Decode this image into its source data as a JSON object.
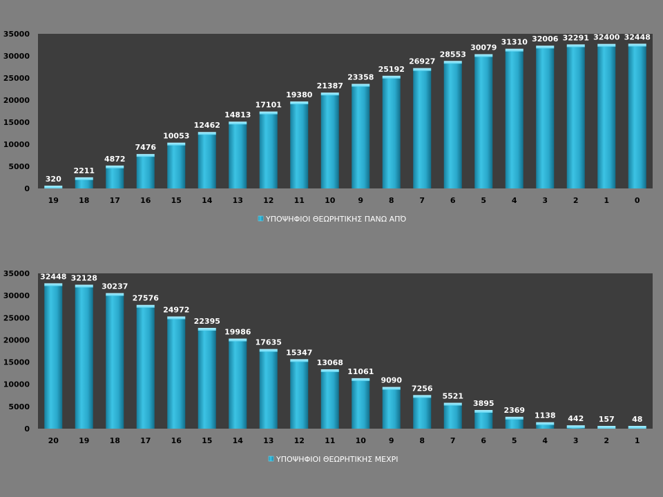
{
  "chart_data": [
    {
      "type": "bar",
      "title": "",
      "xlabel": "",
      "ylabel": "",
      "ylim": [
        0,
        35000
      ],
      "yticks": [
        "0",
        "5000",
        "10000",
        "15000",
        "20000",
        "25000",
        "30000",
        "35000"
      ],
      "categories": [
        "19",
        "18",
        "17",
        "16",
        "15",
        "14",
        "13",
        "12",
        "11",
        "10",
        "9",
        "8",
        "7",
        "6",
        "5",
        "4",
        "3",
        "2",
        "1",
        "0"
      ],
      "series": [
        {
          "name": "ΥΠΟΨΗΦΙΟΙ ΘΕΩΡΗΤΙΚΗΣ ΠΑΝΩ ΑΠΌ",
          "values": [
            320,
            2211,
            4872,
            7476,
            10053,
            12462,
            14813,
            17101,
            19380,
            21387,
            23358,
            25192,
            26927,
            28553,
            30079,
            31310,
            32006,
            32291,
            32400,
            32448
          ]
        }
      ],
      "legend_position": "bottom",
      "grid": false
    },
    {
      "type": "bar",
      "title": "",
      "xlabel": "",
      "ylabel": "",
      "ylim": [
        0,
        35000
      ],
      "yticks": [
        "0",
        "5000",
        "10000",
        "15000",
        "20000",
        "25000",
        "30000",
        "35000"
      ],
      "categories": [
        "20",
        "19",
        "18",
        "17",
        "16",
        "15",
        "14",
        "13",
        "12",
        "11",
        "10",
        "9",
        "8",
        "7",
        "6",
        "5",
        "4",
        "3",
        "2",
        "1"
      ],
      "series": [
        {
          "name": "ΥΠΟΨΗΦΙΟΙ ΘΕΩΡΗΤΙΚΗΣ ΜΕΧΡΙ",
          "values": [
            32448,
            32128,
            30237,
            27576,
            24972,
            22395,
            19986,
            17635,
            15347,
            13068,
            11061,
            9090,
            7256,
            5521,
            3895,
            2369,
            1138,
            442,
            157,
            48
          ]
        }
      ],
      "legend_position": "bottom",
      "grid": false
    }
  ],
  "colors": {
    "background": "#7f7f7f",
    "plot_area": "#3d3d3d",
    "bar_main": "#2fb3d6",
    "bar_light": "#6fdcf5",
    "bar_dark": "#17809f",
    "label": "#ffffff",
    "tick": "#000000"
  }
}
